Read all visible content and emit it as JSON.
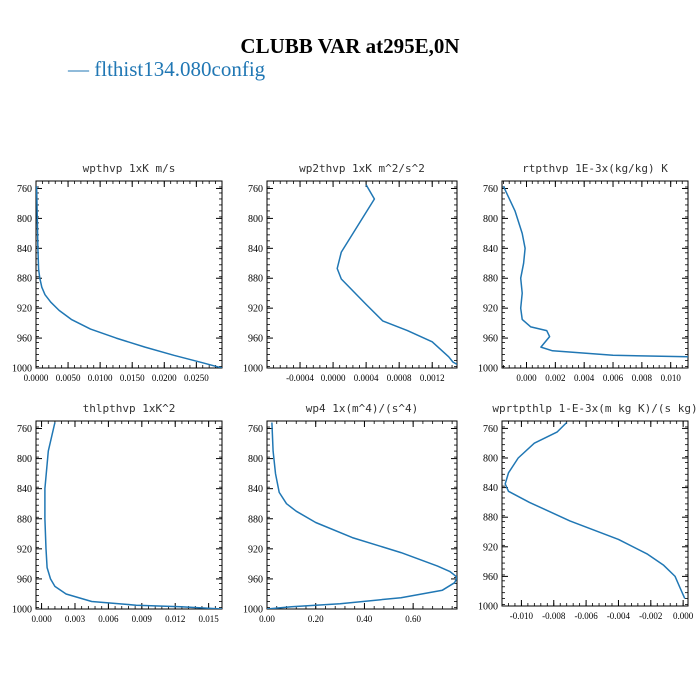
{
  "title": "CLUBB VAR at295E,0N",
  "legend": {
    "marker": "—",
    "label": "flthist134.080config",
    "color": "#2077b4"
  },
  "line_color": "#2077b4",
  "chart_data": [
    {
      "type": "line",
      "title": "wpthvp   1xK m/s",
      "ylim": [
        1000,
        750
      ],
      "yticks": [
        760,
        800,
        840,
        880,
        920,
        960,
        1000
      ],
      "xlim": [
        0,
        0.029
      ],
      "xticks": [
        0,
        0.005,
        0.01,
        0.015,
        0.02,
        0.025
      ],
      "xticklabels": [
        "0.0000",
        "0.0050",
        "0.0100",
        "0.0150",
        "0.0200",
        "0.0250"
      ],
      "series": [
        {
          "x": [
            0.0001,
            0.0002,
            0.0003,
            0.0004,
            0.0006,
            0.0009,
            0.0014,
            0.0023,
            0.0036,
            0.0055,
            0.0085,
            0.0125,
            0.017,
            0.0215,
            0.026,
            0.029
          ],
          "y": [
            757,
            800,
            840,
            868,
            880,
            892,
            902,
            912,
            923,
            935,
            948,
            960,
            972,
            983,
            993,
            1000
          ]
        }
      ]
    },
    {
      "type": "line",
      "title": "wp2thvp   1xK m^2/s^2",
      "ylim": [
        1000,
        750
      ],
      "yticks": [
        760,
        800,
        840,
        880,
        920,
        960,
        1000
      ],
      "xlim": [
        -0.0008,
        0.0015
      ],
      "xticks": [
        -0.0004,
        0.0,
        0.0004,
        0.0008,
        0.0012
      ],
      "xticklabels": [
        "-0.0004",
        "0.0000",
        "0.0004",
        "0.0008",
        "0.0012"
      ],
      "series": [
        {
          "x": [
            0.0004,
            0.0005,
            0.0001,
            5e-05,
            0.0001,
            0.0004,
            0.0006,
            0.0009,
            0.0012,
            0.0014,
            0.00145,
            0.0015
          ],
          "y": [
            755,
            774,
            845,
            867,
            881,
            915,
            937,
            950,
            965,
            985,
            992,
            995
          ]
        }
      ]
    },
    {
      "type": "line",
      "title": "rtpthvp   1E-3x(kg/kg) K",
      "ylim": [
        1000,
        750
      ],
      "yticks": [
        760,
        800,
        840,
        880,
        920,
        960,
        1000
      ],
      "xlim": [
        -0.0017,
        0.0112
      ],
      "xticks": [
        0.0,
        0.002,
        0.004,
        0.006,
        0.008,
        0.01
      ],
      "xticklabels": [
        "0.000",
        "0.002",
        "0.004",
        "0.006",
        "0.008",
        "0.010"
      ],
      "series": [
        {
          "x": [
            -0.0016,
            -0.0008,
            -0.0003,
            -0.0001,
            -0.0002,
            -0.0004,
            -0.0003,
            -0.0004,
            -0.0003,
            0.0003,
            0.0014,
            0.0016,
            0.001,
            0.0018,
            0.006,
            0.0112
          ],
          "y": [
            757,
            790,
            820,
            840,
            860,
            880,
            900,
            920,
            935,
            945,
            950,
            958,
            972,
            977,
            983,
            985
          ]
        }
      ]
    },
    {
      "type": "line",
      "title": "thlpthvp   1xK^2",
      "ylim": [
        1000,
        750
      ],
      "yticks": [
        760,
        800,
        840,
        880,
        920,
        960,
        1000
      ],
      "xlim": [
        -0.0005,
        0.0162
      ],
      "xticks": [
        0.0,
        0.003,
        0.006,
        0.009,
        0.012,
        0.015
      ],
      "xticklabels": [
        "0.000",
        "0.003",
        "0.006",
        "0.009",
        "0.012",
        "0.015"
      ],
      "series": [
        {
          "x": [
            0.0012,
            0.0006,
            0.0003,
            0.0003,
            0.0004,
            0.0005,
            0.0008,
            0.0012,
            0.0022,
            0.0045,
            0.0085,
            0.0125,
            0.0162
          ],
          "y": [
            752,
            790,
            840,
            880,
            920,
            945,
            960,
            970,
            980,
            990,
            995,
            997,
            1000
          ]
        }
      ]
    },
    {
      "type": "line",
      "title": "wp4   1x(m^4)/(s^4)",
      "ylim": [
        1000,
        750
      ],
      "yticks": [
        760,
        800,
        840,
        880,
        920,
        960,
        1000
      ],
      "xlim": [
        0.0,
        0.78
      ],
      "xticks": [
        0.0,
        0.2,
        0.4,
        0.6
      ],
      "xticklabels": [
        "0.00",
        "0.20",
        "0.40",
        "0.60"
      ],
      "series": [
        {
          "x": [
            0.02,
            0.025,
            0.035,
            0.05,
            0.08,
            0.12,
            0.2,
            0.35,
            0.55,
            0.7,
            0.75,
            0.77,
            0.78,
            0.77,
            0.72,
            0.55,
            0.3,
            0.1,
            0.0
          ],
          "y": [
            752,
            790,
            820,
            845,
            860,
            870,
            885,
            905,
            925,
            943,
            950,
            955,
            958,
            965,
            975,
            985,
            993,
            997,
            1000
          ]
        }
      ]
    },
    {
      "type": "line",
      "title": "wprtpthlp   1-E-3x(m kg K)/(s kg)",
      "ylim": [
        1000,
        750
      ],
      "yticks": [
        760,
        800,
        840,
        880,
        920,
        960,
        1000
      ],
      "xlim": [
        -0.0112,
        0.0003
      ],
      "xticks": [
        -0.01,
        -0.008,
        -0.006,
        -0.004,
        -0.002,
        0.0
      ],
      "xticklabels": [
        "-0.010",
        "-0.008",
        "-0.006",
        "-0.004",
        "-0.002",
        "0.000"
      ],
      "series": [
        {
          "x": [
            -0.0072,
            -0.0078,
            -0.0092,
            -0.0102,
            -0.0108,
            -0.011,
            -0.0108,
            -0.0095,
            -0.007,
            -0.004,
            -0.0022,
            -0.0012,
            -0.0005,
            -0.0002,
            0.0001
          ],
          "y": [
            752,
            765,
            780,
            800,
            820,
            835,
            845,
            860,
            885,
            910,
            930,
            945,
            960,
            975,
            990
          ]
        }
      ]
    }
  ]
}
